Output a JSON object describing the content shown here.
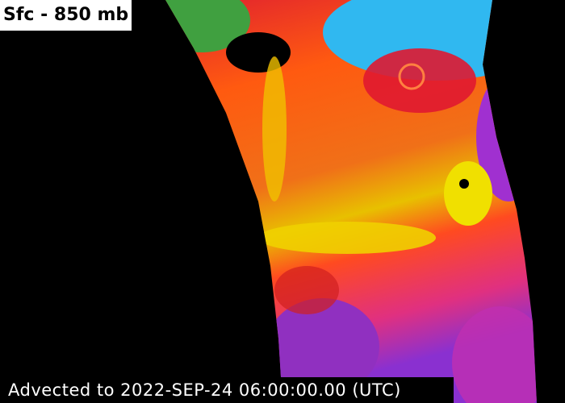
{
  "title": "Sfc - 850 mb",
  "timestamp": "Advected to 2022-SEP-24 06:00:00.00 (UTC)"
}
